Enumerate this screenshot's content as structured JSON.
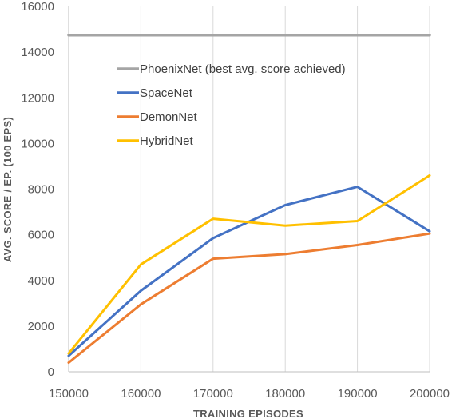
{
  "chart_data": {
    "type": "line",
    "title": "",
    "xlabel": "TRAINING EPISODES",
    "ylabel": "AVG. SCORE / EP. (100 EPS)",
    "xlim": [
      150000,
      200000
    ],
    "ylim": [
      0,
      16000
    ],
    "x_ticks": [
      "150000",
      "160000",
      "170000",
      "180000",
      "190000",
      "200000"
    ],
    "y_ticks": [
      "0",
      "2000",
      "4000",
      "6000",
      "8000",
      "10000",
      "12000",
      "14000",
      "16000"
    ],
    "grid": "vertical",
    "legend_position": "upper-left",
    "series": [
      {
        "name": "PhoenixNet (best avg. score achieved)",
        "color": "#a5a5a5",
        "x": [
          150000,
          200000
        ],
        "y": [
          14750,
          14750
        ]
      },
      {
        "name": "SpaceNet",
        "color": "#4472c4",
        "x": [
          150000,
          160000,
          170000,
          180000,
          190000,
          200000
        ],
        "y": [
          700,
          3550,
          5850,
          7300,
          8100,
          6150
        ]
      },
      {
        "name": "DemonNet",
        "color": "#ed7d31",
        "x": [
          150000,
          160000,
          170000,
          180000,
          190000,
          200000
        ],
        "y": [
          400,
          2950,
          4950,
          5150,
          5550,
          6050
        ]
      },
      {
        "name": "HybridNet",
        "color": "#ffc000",
        "x": [
          150000,
          160000,
          170000,
          180000,
          190000,
          200000
        ],
        "y": [
          800,
          4700,
          6700,
          6400,
          6600,
          8600
        ]
      }
    ]
  }
}
